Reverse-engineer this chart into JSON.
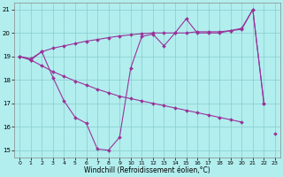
{
  "background_color": "#b2eeee",
  "grid_color": "#88cccc",
  "line_color": "#993399",
  "x": [
    0,
    1,
    2,
    3,
    4,
    5,
    6,
    7,
    8,
    9,
    10,
    11,
    12,
    13,
    14,
    15,
    16,
    17,
    18,
    19,
    20,
    21,
    22,
    23
  ],
  "line1": [
    19.0,
    18.9,
    19.2,
    19.35,
    19.45,
    19.55,
    19.65,
    19.72,
    19.8,
    19.87,
    19.92,
    19.97,
    20.0,
    20.0,
    20.0,
    20.0,
    20.05,
    20.05,
    20.05,
    20.1,
    20.15,
    21.0,
    17.0,
    null
  ],
  "line2": [
    19.0,
    18.85,
    18.6,
    18.35,
    18.15,
    17.95,
    17.78,
    17.6,
    17.45,
    17.3,
    17.2,
    17.1,
    17.0,
    16.9,
    16.8,
    16.7,
    16.6,
    16.5,
    16.4,
    16.3,
    16.2,
    null,
    null,
    15.7
  ],
  "line3": [
    19.0,
    18.85,
    19.2,
    18.1,
    17.1,
    16.4,
    16.15,
    15.05,
    15.0,
    15.55,
    18.5,
    19.85,
    19.95,
    19.45,
    20.0,
    20.6,
    20.0,
    20.0,
    20.0,
    20.1,
    20.2,
    21.0,
    17.0,
    null
  ],
  "ylim_min": 14.7,
  "ylim_max": 21.3,
  "xlim_min": -0.5,
  "xlim_max": 23.5,
  "yticks": [
    15,
    16,
    17,
    18,
    19,
    20,
    21
  ],
  "xticks": [
    0,
    1,
    2,
    3,
    4,
    5,
    6,
    7,
    8,
    9,
    10,
    11,
    12,
    13,
    14,
    15,
    16,
    17,
    18,
    19,
    20,
    21,
    22,
    23
  ],
  "xlabel": "Windchill (Refroidissement éolien,°C)",
  "xlabel_fontsize": 5.5,
  "tick_fontsize": 5,
  "marker": "D",
  "markersize": 2.0,
  "linewidth": 0.8
}
